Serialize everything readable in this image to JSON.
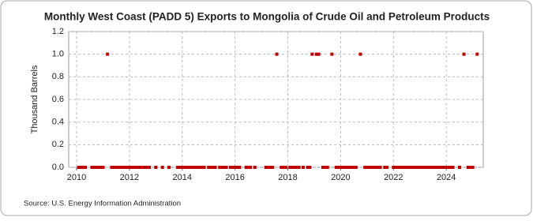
{
  "chart_data": {
    "type": "scatter",
    "title": "Monthly West Coast (PADD 5) Exports to Mongolia of Crude Oil and Petroleum Products",
    "y_label": "Thousand Barrels",
    "source": "Source: U.S. Energy Information Administration",
    "color": "#c00000",
    "grid": true,
    "x": [
      2010.08,
      2010.17,
      2010.25,
      2010.33,
      2010.58,
      2010.67,
      2010.75,
      2010.83,
      2010.92,
      2011.0,
      2011.17,
      2011.33,
      2011.42,
      2011.5,
      2011.58,
      2011.67,
      2011.75,
      2011.83,
      2011.92,
      2012.0,
      2012.08,
      2012.17,
      2012.25,
      2012.33,
      2012.42,
      2012.5,
      2012.58,
      2012.67,
      2012.75,
      2013.0,
      2013.25,
      2013.5,
      2013.83,
      2013.92,
      2014.0,
      2014.08,
      2014.17,
      2014.25,
      2014.33,
      2014.42,
      2014.5,
      2014.58,
      2014.67,
      2014.75,
      2014.83,
      2015.0,
      2015.08,
      2015.17,
      2015.25,
      2015.42,
      2015.5,
      2015.58,
      2015.67,
      2015.83,
      2015.92,
      2016.0,
      2016.08,
      2016.17,
      2016.42,
      2016.5,
      2016.58,
      2016.75,
      2017.17,
      2017.25,
      2017.33,
      2017.42,
      2017.58,
      2017.75,
      2017.83,
      2017.92,
      2018.08,
      2018.17,
      2018.25,
      2018.33,
      2018.42,
      2018.58,
      2018.75,
      2018.83,
      2018.92,
      2019.08,
      2019.17,
      2019.33,
      2019.42,
      2019.5,
      2019.67,
      2019.83,
      2019.92,
      2020.0,
      2020.08,
      2020.17,
      2020.25,
      2020.33,
      2020.42,
      2020.5,
      2020.58,
      2020.75,
      2020.92,
      2021.0,
      2021.08,
      2021.17,
      2021.25,
      2021.33,
      2021.42,
      2021.5,
      2021.67,
      2021.75,
      2022.0,
      2022.08,
      2022.17,
      2022.25,
      2022.33,
      2022.42,
      2022.5,
      2022.58,
      2022.67,
      2022.75,
      2022.83,
      2022.92,
      2023.0,
      2023.08,
      2023.17,
      2023.25,
      2023.33,
      2023.42,
      2023.5,
      2023.58,
      2023.67,
      2023.75,
      2023.83,
      2023.92,
      2024.0,
      2024.08,
      2024.17,
      2024.25,
      2024.5,
      2024.67,
      2024.83,
      2024.92,
      2025.0,
      2025.17
    ],
    "values": [
      0,
      0,
      0,
      0,
      0,
      0,
      0,
      0,
      0,
      0,
      1,
      0,
      0,
      0,
      0,
      0,
      0,
      0,
      0,
      0,
      0,
      0,
      0,
      0,
      0,
      0,
      0,
      0,
      0,
      0,
      0,
      0,
      0,
      0,
      0,
      0,
      0,
      0,
      0,
      0,
      0,
      0,
      0,
      0,
      0,
      0,
      0,
      0,
      0,
      0,
      0,
      0,
      0,
      0,
      0,
      0,
      0,
      0,
      0,
      0,
      0,
      0,
      0,
      0,
      0,
      0,
      1,
      0,
      0,
      0,
      0,
      0,
      0,
      0,
      0,
      0,
      0,
      0,
      1,
      1,
      1,
      0,
      0,
      0,
      1,
      0,
      0,
      0,
      0,
      0,
      0,
      0,
      0,
      0,
      0,
      1,
      0,
      0,
      0,
      0,
      0,
      0,
      0,
      0,
      0,
      0,
      0,
      0,
      0,
      0,
      0,
      0,
      0,
      0,
      0,
      0,
      0,
      0,
      0,
      0,
      0,
      0,
      0,
      0,
      0,
      0,
      0,
      0,
      0,
      0,
      0,
      0,
      0,
      0,
      0,
      1,
      0,
      0,
      0,
      1
    ],
    "xlim": [
      2009.7,
      2025.4
    ],
    "xticks": [
      2010,
      2012,
      2014,
      2016,
      2018,
      2020,
      2022,
      2024
    ],
    "ylim": [
      0,
      1.2
    ],
    "yticks": [
      {
        "value": 0,
        "label": "0.0"
      },
      {
        "value": 0.2,
        "label": "0.2"
      },
      {
        "value": 0.4,
        "label": "0.4"
      },
      {
        "value": 0.6,
        "label": "0.6"
      },
      {
        "value": 0.8,
        "label": "0.8"
      },
      {
        "value": 1,
        "label": "1.0"
      },
      {
        "value": 1.2,
        "label": "1.2"
      }
    ]
  }
}
